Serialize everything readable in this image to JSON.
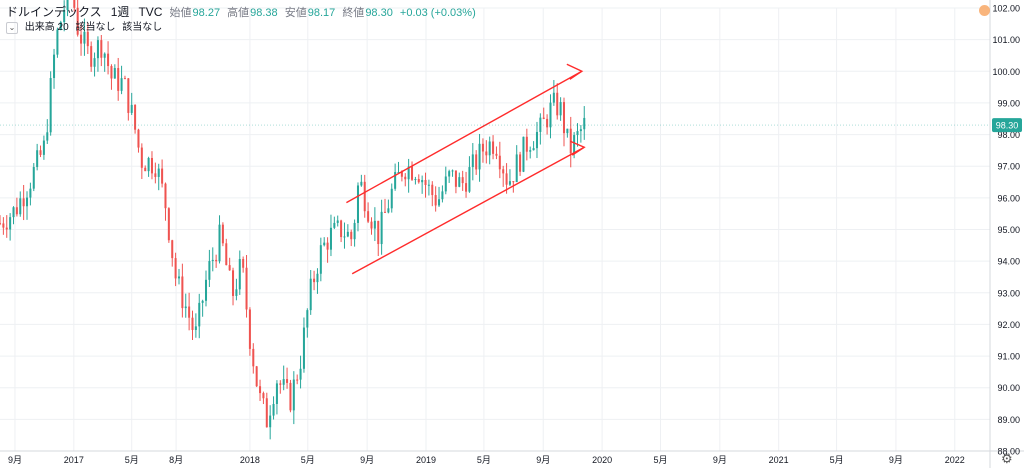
{
  "header": {
    "symbol": "ドルインデックス",
    "interval": "1週",
    "source": "TVC",
    "ohlc": [
      {
        "label": "始値",
        "value": "98.27"
      },
      {
        "label": "高値",
        "value": "98.38"
      },
      {
        "label": "安値",
        "value": "98.17"
      },
      {
        "label": "終値",
        "value": "98.30"
      }
    ],
    "change": "+0.03 (+0.03%)",
    "volume_indicator": "出来高 20",
    "volume_na_1": "該当なし",
    "volume_na_2": "該当なし"
  },
  "colors": {
    "up": "#26a69a",
    "down": "#ef5350",
    "drawing": "#ff2b2b",
    "grid": "#eef0f3",
    "axis_text": "#131722"
  },
  "chart_data": {
    "type": "candlestick",
    "ylim": [
      88.0,
      102.0
    ],
    "y_ticks": [
      "102.00",
      "101.00",
      "100.00",
      "99.00",
      "98.00",
      "97.00",
      "96.00",
      "95.00",
      "94.00",
      "93.00",
      "92.00",
      "91.00",
      "90.00",
      "89.00",
      "88.00"
    ],
    "x_ticks": [
      "9月",
      "2017",
      "5月",
      "8月",
      "2018",
      "5月",
      "9月",
      "2019",
      "5月",
      "9月",
      "2020",
      "5月",
      "9月",
      "2021",
      "5月",
      "9月",
      "2022"
    ],
    "last_price": "98.30",
    "price_path": [
      [
        "2016-08-01",
        95.2
      ],
      [
        "2016-09-01",
        95.6
      ],
      [
        "2016-10-01",
        96.5
      ],
      [
        "2016-11-01",
        97.6
      ],
      [
        "2016-11-25",
        101.0
      ],
      [
        "2016-12-25",
        102.8
      ],
      [
        "2017-01-10",
        101.3
      ],
      [
        "2017-02-01",
        100.5
      ],
      [
        "2017-03-01",
        100.9
      ],
      [
        "2017-03-20",
        99.8
      ],
      [
        "2017-04-15",
        99.6
      ],
      [
        "2017-05-05",
        98.4
      ],
      [
        "2017-05-20",
        97.2
      ],
      [
        "2017-06-20",
        97.1
      ],
      [
        "2017-07-10",
        95.8
      ],
      [
        "2017-08-01",
        93.4
      ],
      [
        "2017-08-25",
        92.4
      ],
      [
        "2017-09-10",
        91.6
      ],
      [
        "2017-10-05",
        93.6
      ],
      [
        "2017-11-01",
        94.8
      ],
      [
        "2017-11-25",
        92.9
      ],
      [
        "2017-12-15",
        93.9
      ],
      [
        "2018-01-01",
        91.6
      ],
      [
        "2018-01-20",
        89.7
      ],
      [
        "2018-02-05",
        89.0
      ],
      [
        "2018-02-25",
        90.3
      ],
      [
        "2018-03-25",
        89.6
      ],
      [
        "2018-04-15",
        90.8
      ],
      [
        "2018-05-05",
        92.9
      ],
      [
        "2018-05-25",
        94.2
      ],
      [
        "2018-06-15",
        94.8
      ],
      [
        "2018-07-10",
        95.0
      ],
      [
        "2018-08-01",
        94.7
      ],
      [
        "2018-08-15",
        96.6
      ],
      [
        "2018-09-05",
        95.6
      ],
      [
        "2018-09-25",
        94.8
      ],
      [
        "2018-10-20",
        96.1
      ],
      [
        "2018-11-15",
        97.0
      ],
      [
        "2018-12-15",
        96.9
      ],
      [
        "2019-01-05",
        96.3
      ],
      [
        "2019-01-25",
        95.9
      ],
      [
        "2019-02-20",
        96.7
      ],
      [
        "2019-03-15",
        96.4
      ],
      [
        "2019-04-10",
        97.0
      ],
      [
        "2019-05-01",
        97.6
      ],
      [
        "2019-05-25",
        97.8
      ],
      [
        "2019-06-20",
        96.5
      ],
      [
        "2019-07-10",
        97.1
      ],
      [
        "2019-08-01",
        97.8
      ],
      [
        "2019-08-25",
        98.1
      ],
      [
        "2019-09-20",
        98.9
      ],
      [
        "2019-10-05",
        98.9
      ],
      [
        "2019-10-25",
        97.5
      ],
      [
        "2019-11-10",
        97.9
      ],
      [
        "2019-11-25",
        98.3
      ]
    ]
  }
}
